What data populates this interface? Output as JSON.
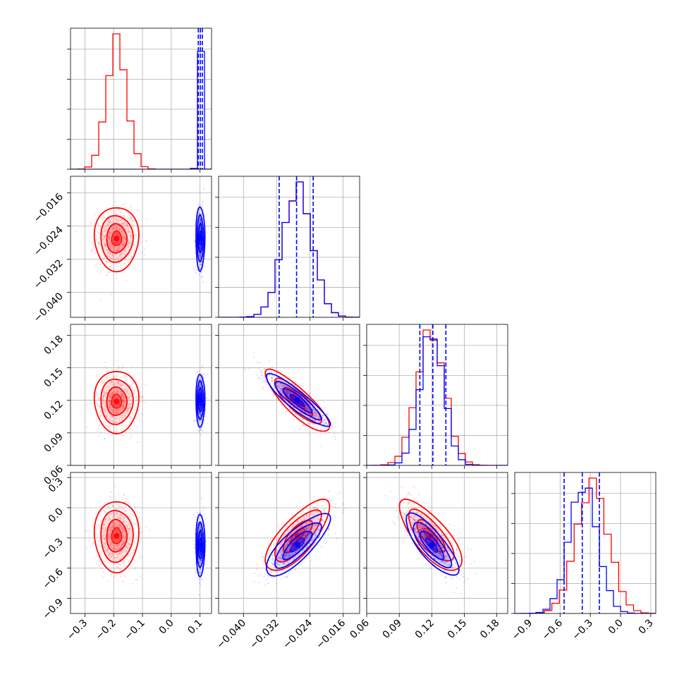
{
  "chart_data": {
    "type": "scatter",
    "title": "",
    "params": [
      {
        "lim": [
          -0.35,
          0.14
        ],
        "ticks": [
          -0.3,
          -0.2,
          -0.1,
          0.0,
          0.1
        ],
        "tick_labels": [
          "−0.3",
          "−0.2",
          "−0.1",
          "0.0",
          "0.1"
        ]
      },
      {
        "lim": [
          -0.046,
          -0.012
        ],
        "ticks": [
          -0.04,
          -0.032,
          -0.024,
          -0.016
        ],
        "tick_labels": [
          "−0.040",
          "−0.032",
          "−0.024",
          "−0.016"
        ]
      },
      {
        "lim": [
          0.06,
          0.19
        ],
        "ticks": [
          0.06,
          0.09,
          0.12,
          0.15,
          0.18
        ],
        "tick_labels": [
          "0.06",
          "0.09",
          "0.12",
          "0.15",
          "0.18"
        ]
      },
      {
        "lim": [
          -1.05,
          0.35
        ],
        "ticks": [
          -0.9,
          -0.6,
          -0.3,
          0.0,
          0.3
        ],
        "tick_labels": [
          "−0.9",
          "−0.6",
          "−0.3",
          "0.0",
          "0.3"
        ]
      }
    ],
    "series": [
      {
        "color": "#ff0000",
        "mean": [
          -0.19,
          -0.027,
          0.119,
          -0.28
        ],
        "std": [
          0.035,
          0.0035,
          0.013,
          0.16
        ],
        "corr": [
          [
            1,
            0,
            0,
            0
          ],
          [
            0,
            1,
            -0.85,
            0.75
          ],
          [
            0,
            -0.85,
            1,
            -0.75
          ],
          [
            0,
            0.75,
            -0.75,
            1
          ]
        ]
      },
      {
        "color": "#0000ff",
        "mean": [
          0.101,
          -0.027,
          0.12,
          -0.37
        ],
        "std": [
          0.007,
          0.0035,
          0.011,
          0.14
        ],
        "corr": [
          [
            1,
            0,
            0,
            0
          ],
          [
            0,
            1,
            -0.9,
            0.8
          ],
          [
            0,
            -0.9,
            1,
            -0.8
          ],
          [
            0,
            0.8,
            -0.8,
            1
          ]
        ]
      }
    ],
    "quantile_lines": [
      [
        0.094,
        0.101,
        0.108
      ],
      [
        -0.0314,
        -0.0272,
        -0.0232
      ],
      [
        0.109,
        0.121,
        0.133
      ],
      [
        -0.56,
        -0.38,
        -0.21
      ]
    ],
    "grid": true
  }
}
